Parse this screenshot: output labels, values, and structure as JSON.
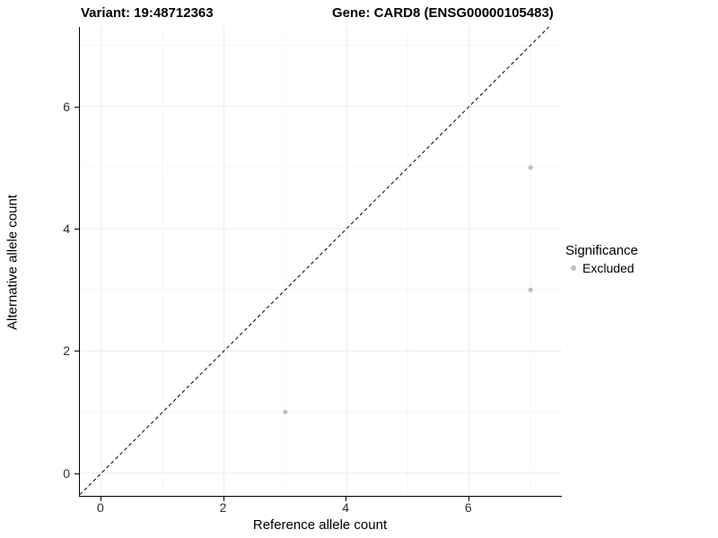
{
  "chart_data": {
    "type": "scatter",
    "title_left": "Variant: 19:48712363",
    "title_right": "Gene: CARD8 (ENSG00000105483)",
    "xlabel": "Reference allele count",
    "ylabel": "Alternative allele count",
    "xlim": [
      -0.35,
      7.51
    ],
    "ylim": [
      -0.37,
      7.3
    ],
    "x_ticks": [
      0,
      2,
      4,
      6
    ],
    "y_ticks": [
      0,
      2,
      4,
      6
    ],
    "x_minor_ticks": [
      1,
      3,
      5,
      7
    ],
    "y_minor_ticks": [
      1,
      3,
      5,
      7
    ],
    "grid": true,
    "grid_major_color": "#ebebeb",
    "grid_minor_color": "#f6f6f6",
    "points": [
      {
        "x": 3,
        "y": 1
      },
      {
        "x": 7,
        "y": 5
      },
      {
        "x": 7,
        "y": 3
      }
    ],
    "point_color": "#bdbdbd",
    "point_radius": 2.6,
    "reference_line": {
      "slope": 1,
      "intercept": 0,
      "style": "dashed",
      "color": "#000000"
    },
    "legend": {
      "title": "Significance",
      "position": "right",
      "items": [
        {
          "label": "Excluded",
          "color": "#bdbdbd"
        }
      ]
    }
  }
}
